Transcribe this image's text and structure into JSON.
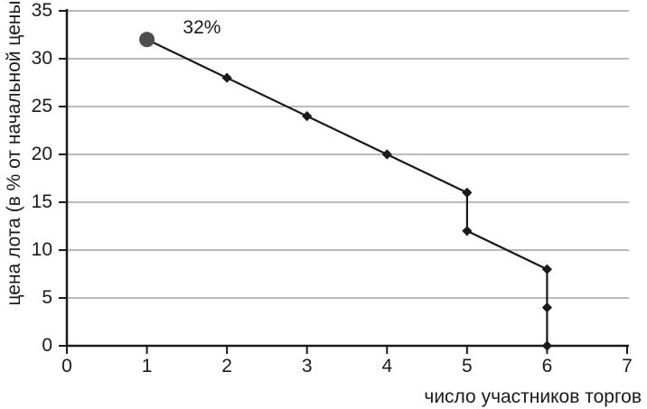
{
  "page": {
    "background": "#ffffff"
  },
  "chart_data": {
    "type": "line",
    "title": "",
    "xlabel": "число участников торгов",
    "ylabel": "цена лота (в % от начальной цены)",
    "xlim": [
      0,
      7
    ],
    "ylim": [
      0,
      35
    ],
    "x_ticks": [
      0,
      1,
      2,
      3,
      4,
      5,
      6,
      7
    ],
    "y_ticks": [
      0,
      5,
      10,
      15,
      20,
      25,
      30,
      35
    ],
    "grid": "horizontal-only",
    "legend": "none",
    "colors": {
      "axis": "#1a1a1a",
      "grid": "#909090",
      "line": "#1a1a1a",
      "diamond_marker": "#1a1a1a",
      "circle_marker": "#4d4d4d",
      "text": "#1a1a1a",
      "background": "#ffffff"
    },
    "series": [
      {
        "name": "цена лота",
        "marker": "diamond",
        "start_marker": "circle",
        "points": [
          [
            1,
            32
          ],
          [
            2,
            28
          ],
          [
            3,
            24
          ],
          [
            4,
            20
          ],
          [
            5,
            16
          ],
          [
            5,
            12
          ],
          [
            6,
            8
          ],
          [
            6,
            4
          ],
          [
            6,
            0
          ]
        ]
      }
    ],
    "annotation": {
      "text": "32%",
      "x": 1.45,
      "y": 33.2
    }
  }
}
